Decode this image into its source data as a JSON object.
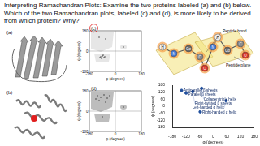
{
  "title": "Interpreting Ramachandran Plots: Examine the two proteins labeled (a) and (b) below. Which of the two Ramachandran plots, labeled (c) and (d), is more likely to be derived from which protein? Why?",
  "panels": [
    {
      "label": "(a)"
    },
    {
      "label": "(b)"
    }
  ],
  "plots": [
    {
      "label": "(c)",
      "x_label": "φ (degrees)",
      "y_label": "ψ (degrees)",
      "xlim": [
        -180,
        180
      ],
      "ylim": [
        -180,
        180
      ],
      "xticks": [
        -180,
        0,
        180
      ],
      "yticks": [
        -180,
        0,
        180
      ]
    },
    {
      "label": "(d)",
      "x_label": "φ (degrees)",
      "y_label": "ψ (degrees)",
      "xlim": [
        -180,
        180
      ],
      "ylim": [
        -180,
        180
      ],
      "xticks": [
        -180,
        0,
        180
      ],
      "yticks": [
        -180,
        0,
        180
      ]
    }
  ],
  "peptide_diagram": {
    "atoms": [
      "H",
      "N",
      "Cα",
      "C",
      "O",
      "N",
      "H",
      "Cα",
      "C",
      "O"
    ],
    "labels": [
      "Peptide bond",
      "Peptide plane"
    ]
  },
  "chart_data": {
    "type": "scatter",
    "x_label": "φ (degrees)",
    "y_label": "ψ (degrees)",
    "xlim": [
      -180,
      180
    ],
    "ylim": [
      -180,
      180
    ],
    "xticks": [
      -180,
      -120,
      -60,
      0,
      60,
      120,
      180
    ],
    "yticks": [
      -180,
      -120,
      -60,
      0,
      60,
      120,
      180
    ],
    "grid": false,
    "color": "#1f4e9c",
    "series": [
      {
        "name": "Antiparallel β sheets",
        "x": [
          -139
        ],
        "y": [
          135
        ]
      },
      {
        "name": "Parallel β sheets",
        "x": [
          -119
        ],
        "y": [
          113
        ]
      },
      {
        "name": "Collagen triple helix",
        "x": [
          -51
        ],
        "y": [
          153
        ]
      },
      {
        "name": "Right-twisted β sheets",
        "x": [
          -90
        ],
        "y": [
          125
        ]
      },
      {
        "name": "Left-handed α helix",
        "x": [
          57
        ],
        "y": [
          47
        ]
      },
      {
        "name": "Right-handed α helix",
        "x": [
          -57
        ],
        "y": [
          -47
        ]
      }
    ]
  }
}
